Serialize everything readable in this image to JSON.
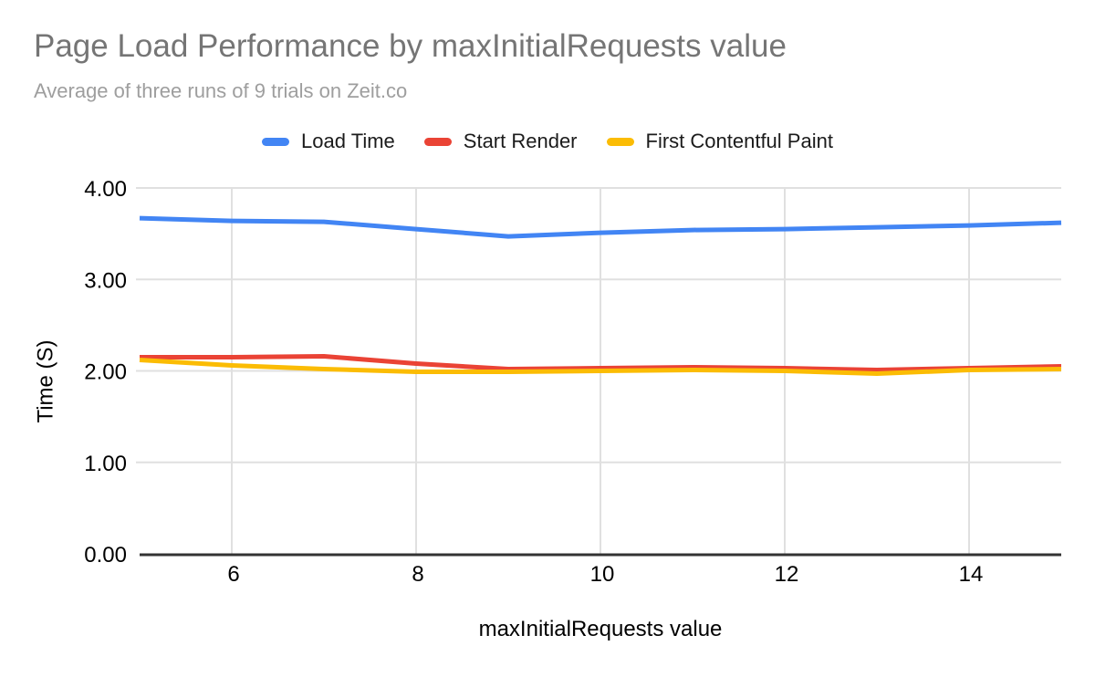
{
  "chart_data": {
    "type": "line",
    "title": "Page Load Performance by maxInitialRequests value",
    "subtitle": "Average of three runs of 9 trials on Zeit.co",
    "xlabel": "maxInitialRequests value",
    "ylabel": "Time (S)",
    "x": [
      5,
      6,
      7,
      8,
      9,
      10,
      11,
      12,
      13,
      14,
      15
    ],
    "xlim": [
      5,
      15
    ],
    "ylim": [
      0,
      4
    ],
    "x_tick_values": [
      6,
      8,
      10,
      12,
      14
    ],
    "x_tick_labels": [
      "6",
      "8",
      "10",
      "12",
      "14"
    ],
    "y_tick_values": [
      0,
      1,
      2,
      3,
      4
    ],
    "y_tick_labels": [
      "0.00",
      "1.00",
      "2.00",
      "3.00",
      "4.00"
    ],
    "grid": true,
    "legend_position": "top",
    "series": [
      {
        "name": "Load Time",
        "color": "#4285F4",
        "values": [
          3.67,
          3.64,
          3.63,
          3.55,
          3.47,
          3.51,
          3.54,
          3.55,
          3.57,
          3.59,
          3.62
        ]
      },
      {
        "name": "Start Render",
        "color": "#EA4335",
        "values": [
          2.15,
          2.15,
          2.16,
          2.08,
          2.02,
          2.03,
          2.04,
          2.03,
          2.01,
          2.03,
          2.05
        ]
      },
      {
        "name": "First Contentful Paint",
        "color": "#FBBC04",
        "values": [
          2.12,
          2.06,
          2.02,
          1.99,
          1.99,
          2.0,
          2.01,
          2.0,
          1.97,
          2.01,
          2.02
        ]
      }
    ]
  },
  "colors": {
    "title": "#757575",
    "subtitle": "#9E9E9E",
    "legend_text": "#1B1B1B",
    "tick_label": "#000000",
    "axis_title": "#000000",
    "gridline": "#E0E0E0",
    "axis_line": "#333333",
    "background": "#FFFFFF"
  }
}
